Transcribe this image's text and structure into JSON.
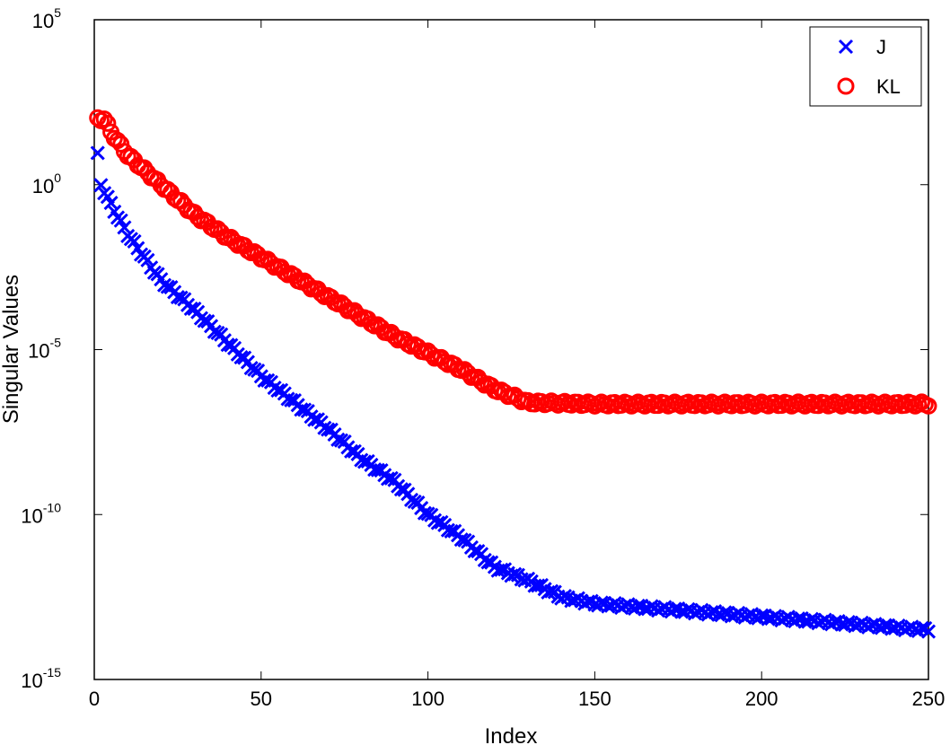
{
  "chart_data": {
    "type": "scatter",
    "title": "",
    "xlabel": "Index",
    "ylabel": "Singular Values",
    "xlim": [
      0,
      250
    ],
    "ylim_log10": [
      -15,
      5
    ],
    "yscale": "log",
    "x_ticks": [
      "0",
      "50",
      "100",
      "150",
      "200",
      "250"
    ],
    "y_ticks": [
      {
        "base": "10",
        "exp": "-15"
      },
      {
        "base": "10",
        "exp": "-10"
      },
      {
        "base": "10",
        "exp": "-5"
      },
      {
        "base": "10",
        "exp": "0"
      },
      {
        "base": "10",
        "exp": "5"
      }
    ],
    "grid": false,
    "legend_position": "top-right",
    "series": [
      {
        "name": "J",
        "marker": "x",
        "color": "#0000ff",
        "x_range": [
          1,
          250
        ],
        "log10_anchors": [
          [
            1,
            0.9
          ],
          [
            2,
            0.0
          ],
          [
            5,
            -0.6
          ],
          [
            10,
            -1.5
          ],
          [
            20,
            -2.9
          ],
          [
            30,
            -3.8
          ],
          [
            40,
            -4.8
          ],
          [
            50,
            -5.8
          ],
          [
            60,
            -6.6
          ],
          [
            70,
            -7.4
          ],
          [
            80,
            -8.3
          ],
          [
            90,
            -9.0
          ],
          [
            100,
            -10.0
          ],
          [
            110,
            -10.7
          ],
          [
            120,
            -11.6
          ],
          [
            130,
            -12.0
          ],
          [
            140,
            -12.5
          ],
          [
            150,
            -12.7
          ],
          [
            200,
            -13.1
          ],
          [
            250,
            -13.5
          ]
        ]
      },
      {
        "name": "KL",
        "marker": "o",
        "color": "#ff0000",
        "x_range": [
          1,
          250
        ],
        "log10_anchors": [
          [
            1,
            2.0
          ],
          [
            3,
            2.0
          ],
          [
            5,
            1.6
          ],
          [
            10,
            0.9
          ],
          [
            20,
            0.0
          ],
          [
            30,
            -0.9
          ],
          [
            40,
            -1.6
          ],
          [
            50,
            -2.2
          ],
          [
            60,
            -2.8
          ],
          [
            70,
            -3.4
          ],
          [
            80,
            -4.0
          ],
          [
            90,
            -4.6
          ],
          [
            100,
            -5.1
          ],
          [
            110,
            -5.6
          ],
          [
            120,
            -6.2
          ],
          [
            130,
            -6.6
          ],
          [
            150,
            -6.65
          ],
          [
            250,
            -6.65
          ]
        ]
      }
    ]
  }
}
